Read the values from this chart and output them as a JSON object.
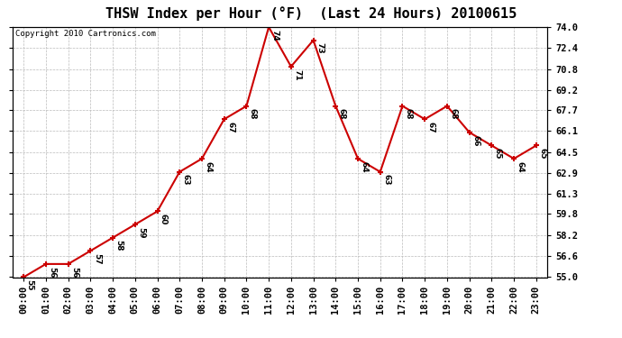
{
  "title": "THSW Index per Hour (°F)  (Last 24 Hours) 20100615",
  "copyright": "Copyright 2010 Cartronics.com",
  "hours": [
    "00:00",
    "01:00",
    "02:00",
    "03:00",
    "04:00",
    "05:00",
    "06:00",
    "07:00",
    "08:00",
    "09:00",
    "10:00",
    "11:00",
    "12:00",
    "13:00",
    "14:00",
    "15:00",
    "16:00",
    "17:00",
    "18:00",
    "19:00",
    "20:00",
    "21:00",
    "22:00",
    "23:00"
  ],
  "values": [
    55,
    56,
    56,
    57,
    58,
    59,
    60,
    63,
    64,
    67,
    68,
    74,
    71,
    73,
    68,
    64,
    63,
    68,
    67,
    68,
    66,
    65,
    64,
    65
  ],
  "line_color": "#cc0000",
  "marker_color": "#cc0000",
  "bg_color": "#ffffff",
  "grid_color": "#bbbbbb",
  "ylim_min": 55.0,
  "ylim_max": 74.0,
  "yticks": [
    55.0,
    56.6,
    58.2,
    59.8,
    61.3,
    62.9,
    64.5,
    66.1,
    67.7,
    69.2,
    70.8,
    72.4,
    74.0
  ],
  "title_fontsize": 11,
  "label_fontsize": 6.5,
  "tick_fontsize": 7.5,
  "copyright_fontsize": 6.5
}
